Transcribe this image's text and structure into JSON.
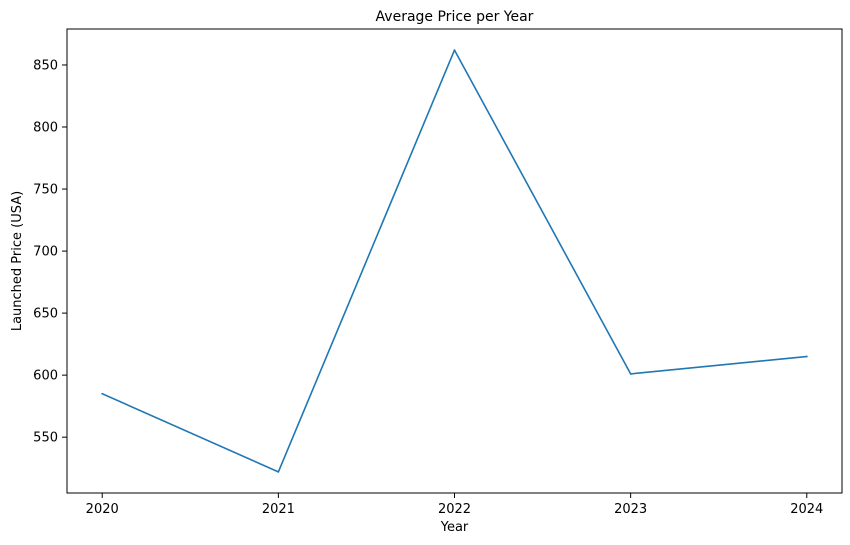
{
  "chart_data": {
    "type": "line",
    "title": "Average Price per Year",
    "xlabel": "Year",
    "ylabel": "Launched Price (USA)",
    "x": [
      "2020",
      "2021",
      "2022",
      "2023",
      "2024"
    ],
    "series": [
      {
        "values": [
          585,
          522,
          862,
          601,
          615
        ],
        "color": "#1f77b4"
      }
    ],
    "xlim": [
      2019.8,
      2024.2
    ],
    "ylim": [
      505,
      879
    ],
    "yticks": [
      550,
      600,
      650,
      700,
      750,
      800,
      850
    ],
    "grid": false,
    "legend": "none"
  }
}
